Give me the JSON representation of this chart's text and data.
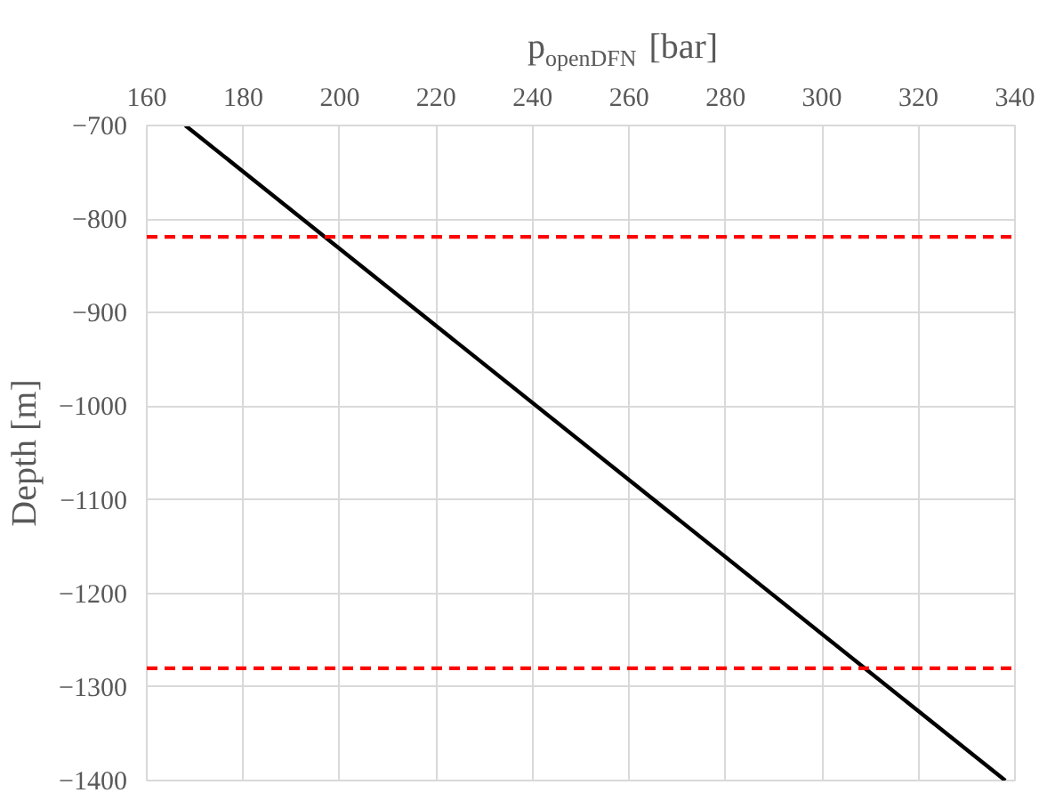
{
  "chart_data": {
    "type": "line",
    "xlabel": "p$_{openDFN}$ [bar]",
    "ylabel": "Depth [m]",
    "series": [
      {
        "x": [
          168,
          338
        ],
        "values": [
          -700,
          -1400
        ],
        "color": "#000000"
      }
    ],
    "ref_lines": [
      {
        "axis": "y",
        "value": -819,
        "label": null,
        "color": "#ff0000",
        "line_style": "dashed"
      },
      {
        "axis": "y",
        "value": -1280,
        "label": null,
        "color": "#ff0000",
        "line_style": "dashed"
      }
    ],
    "xlim": [
      160,
      340
    ],
    "xticks": [
      160,
      180,
      200,
      220,
      240,
      260,
      280,
      300,
      320,
      340
    ],
    "ylim": [
      -1400,
      -700
    ],
    "yticks": [
      -700,
      -800,
      -900,
      -1000,
      -1100,
      -1200,
      -1300,
      -1400
    ],
    "grid": true
  }
}
